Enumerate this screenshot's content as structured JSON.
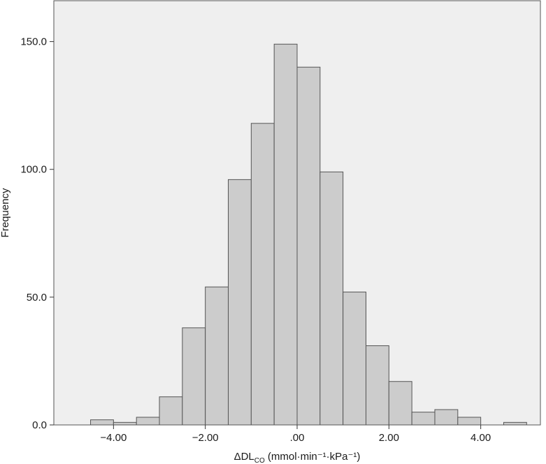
{
  "chart_data": {
    "type": "bar",
    "subtype": "histogram",
    "title": "",
    "xlabel": {
      "prefix": "ΔDL",
      "subscript": "CO",
      "suffix": " (mmol·min⁻¹·kPa⁻¹)"
    },
    "ylabel": "Frequency",
    "xlim": [
      -5.3,
      5.3
    ],
    "ylim": [
      0,
      166
    ],
    "bin_width": 0.5,
    "x_ticks": [
      -4,
      -2,
      0,
      2,
      4
    ],
    "x_tick_labels": [
      "−4.00",
      "−2.00",
      ".00",
      "2.00",
      "4.00"
    ],
    "y_ticks": [
      0,
      50,
      100,
      150
    ],
    "y_tick_labels": [
      "0.0",
      "50.0",
      "100.0",
      "150.0"
    ],
    "grid": false,
    "legend": "none",
    "colors": {
      "plot_background": "#efefef",
      "bar_fill": "#cccccc",
      "bar_edge": "#555555"
    },
    "bins": [
      {
        "start": -4.5,
        "end": -4.0,
        "count": 2
      },
      {
        "start": -4.0,
        "end": -3.5,
        "count": 1
      },
      {
        "start": -3.5,
        "end": -3.0,
        "count": 3
      },
      {
        "start": -3.0,
        "end": -2.5,
        "count": 11
      },
      {
        "start": -2.5,
        "end": -2.0,
        "count": 38
      },
      {
        "start": -2.0,
        "end": -1.5,
        "count": 54
      },
      {
        "start": -1.5,
        "end": -1.0,
        "count": 96
      },
      {
        "start": -1.0,
        "end": -0.5,
        "count": 118
      },
      {
        "start": -0.5,
        "end": 0.0,
        "count": 149
      },
      {
        "start": 0.0,
        "end": 0.5,
        "count": 140
      },
      {
        "start": 0.5,
        "end": 1.0,
        "count": 99
      },
      {
        "start": 1.0,
        "end": 1.5,
        "count": 52
      },
      {
        "start": 1.5,
        "end": 2.0,
        "count": 31
      },
      {
        "start": 2.0,
        "end": 2.5,
        "count": 17
      },
      {
        "start": 2.5,
        "end": 3.0,
        "count": 5
      },
      {
        "start": 3.0,
        "end": 3.5,
        "count": 6
      },
      {
        "start": 3.5,
        "end": 4.0,
        "count": 3
      },
      {
        "start": 4.0,
        "end": 4.5,
        "count": 0
      },
      {
        "start": 4.5,
        "end": 5.0,
        "count": 1
      }
    ]
  }
}
